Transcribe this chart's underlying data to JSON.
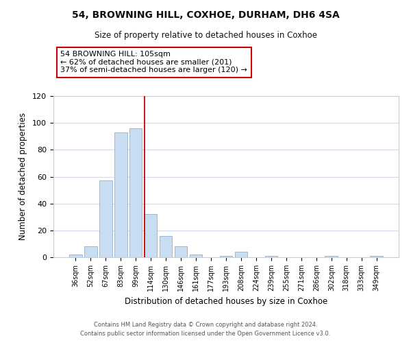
{
  "title": "54, BROWNING HILL, COXHOE, DURHAM, DH6 4SA",
  "subtitle": "Size of property relative to detached houses in Coxhoe",
  "xlabel": "Distribution of detached houses by size in Coxhoe",
  "ylabel": "Number of detached properties",
  "bar_labels": [
    "36sqm",
    "52sqm",
    "67sqm",
    "83sqm",
    "99sqm",
    "114sqm",
    "130sqm",
    "146sqm",
    "161sqm",
    "177sqm",
    "193sqm",
    "208sqm",
    "224sqm",
    "239sqm",
    "255sqm",
    "271sqm",
    "286sqm",
    "302sqm",
    "318sqm",
    "333sqm",
    "349sqm"
  ],
  "bar_values": [
    2,
    8,
    57,
    93,
    96,
    32,
    16,
    8,
    2,
    0,
    1,
    4,
    0,
    1,
    0,
    0,
    0,
    1,
    0,
    0,
    1
  ],
  "bar_color": "#c8ddf2",
  "bar_edge_color": "#9ab8d8",
  "vline_x": 4.57,
  "vline_color": "#cc0000",
  "annotation_title": "54 BROWNING HILL: 105sqm",
  "annotation_line1": "← 62% of detached houses are smaller (201)",
  "annotation_line2": "37% of semi-detached houses are larger (120) →",
  "annotation_box_color": "#ffffff",
  "annotation_box_edge": "#cc0000",
  "ylim": [
    0,
    120
  ],
  "yticks": [
    0,
    20,
    40,
    60,
    80,
    100,
    120
  ],
  "footer1": "Contains HM Land Registry data © Crown copyright and database right 2024.",
  "footer2": "Contains public sector information licensed under the Open Government Licence v3.0.",
  "background_color": "#ffffff",
  "grid_color": "#d0daea"
}
